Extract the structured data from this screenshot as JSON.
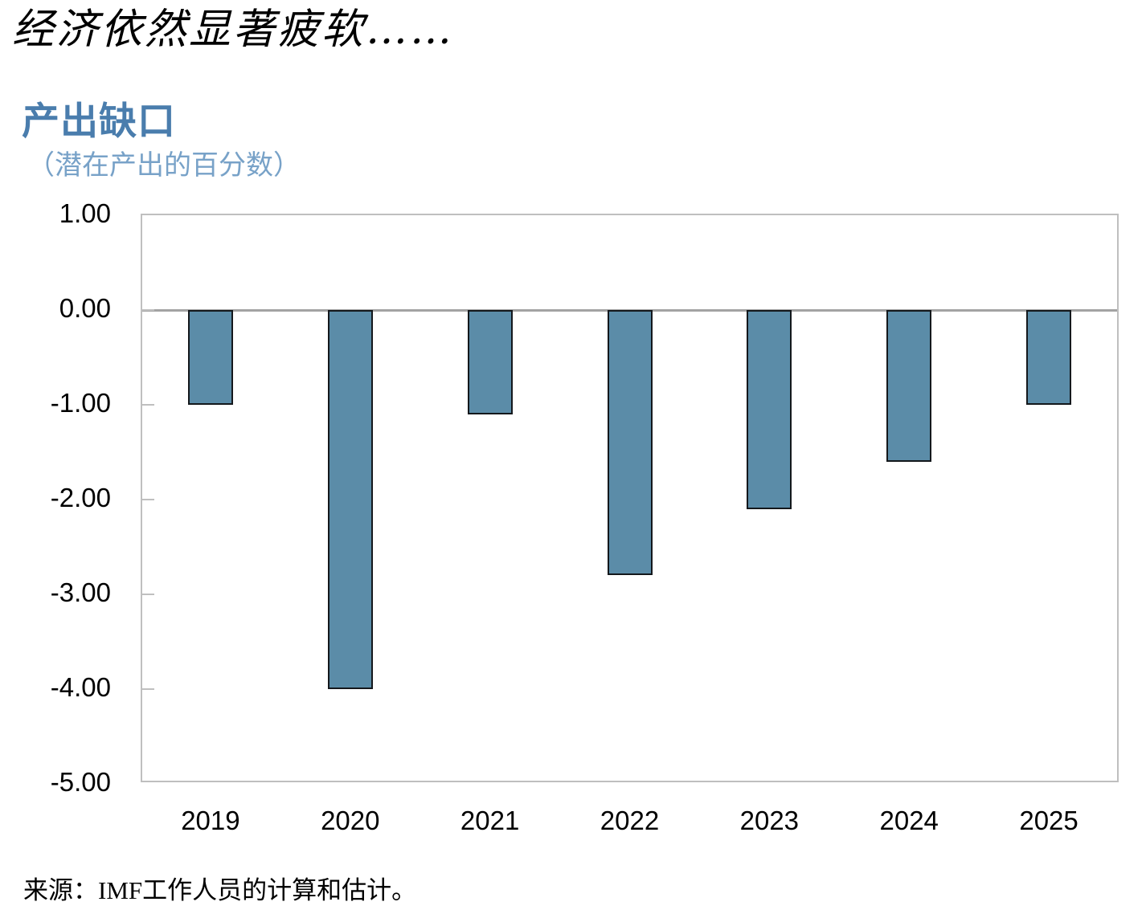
{
  "page": {
    "title": "经济依然显著疲软……"
  },
  "chart_data": {
    "type": "bar",
    "title": "产出缺口",
    "subtitle": "（潜在产出的百分数）",
    "categories": [
      "2019",
      "2020",
      "2021",
      "2022",
      "2023",
      "2024",
      "2025"
    ],
    "values": [
      -1.0,
      -4.0,
      -1.1,
      -2.8,
      -2.1,
      -1.6,
      -1.0
    ],
    "ylim": [
      -5.0,
      1.0
    ],
    "y_ticks": [
      1.0,
      0.0,
      -1.0,
      -2.0,
      -3.0,
      -4.0,
      -5.0
    ],
    "y_tick_labels": [
      "1.00",
      "0.00",
      "-1.00",
      "-2.00",
      "-3.00",
      "-4.00",
      "-5.00"
    ],
    "grid": false,
    "legend": "none",
    "bar_fill_color": "#5b8ca8",
    "bar_border_color": "#14181c",
    "frame_color": "#bfbfbf",
    "zero_line_color": "#a3a3a3"
  },
  "source": "来源：IMF工作人员的计算和估计。",
  "colors": {
    "title_blue": "#4a7dad",
    "subtitle_blue": "#78a2c8",
    "text_black": "#000000"
  }
}
